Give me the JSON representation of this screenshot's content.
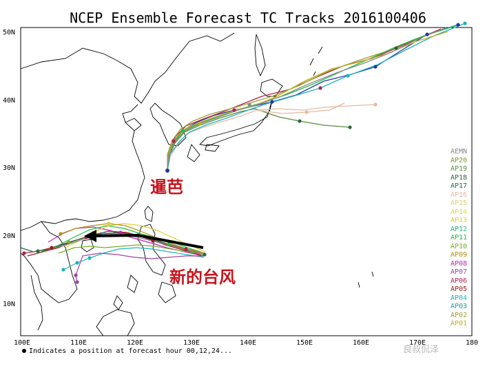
{
  "title": "NCEP Ensemble Forecast TC Tracks 2016100406",
  "lat_labels": [
    "50N",
    "40N",
    "30N",
    "20N",
    "10N"
  ],
  "lon_labels": [
    "100E",
    "110E",
    "120E",
    "130E",
    "140E",
    "150E",
    "160E",
    "170E",
    "180"
  ],
  "legend": [
    {
      "name": "AEMN",
      "color": "#8a8a8a"
    },
    {
      "name": "AP20",
      "color": "#7a9a2a"
    },
    {
      "name": "AP19",
      "color": "#5a8a3a"
    },
    {
      "name": "AP18",
      "color": "#2a6a3a"
    },
    {
      "name": "AP17",
      "color": "#1a6a4a"
    },
    {
      "name": "AP16",
      "color": "#e8b8a0"
    },
    {
      "name": "AP15",
      "color": "#e0d070"
    },
    {
      "name": "AP14",
      "color": "#e0e040"
    },
    {
      "name": "AP13",
      "color": "#e0d030"
    },
    {
      "name": "AP12",
      "color": "#2ab080"
    },
    {
      "name": "AP11",
      "color": "#20c040"
    },
    {
      "name": "AP10",
      "color": "#70b020"
    },
    {
      "name": "AP09",
      "color": "#b09010"
    },
    {
      "name": "AP08",
      "color": "#c020c0"
    },
    {
      "name": "AP07",
      "color": "#a040a0"
    },
    {
      "name": "AP06",
      "color": "#b02050"
    },
    {
      "name": "AP05",
      "color": "#9a1a1a"
    },
    {
      "name": "AP04",
      "color": "#20b0c0"
    },
    {
      "name": "AP03",
      "color": "#20a0a0"
    },
    {
      "name": "AP02",
      "color": "#a0a030"
    },
    {
      "name": "AP01",
      "color": "#c0b020"
    }
  ],
  "footnote": "Indicates a position at forecast hour 00,12,24...",
  "annotations": {
    "north_storm": "暹芭",
    "south_storm": "新的台风"
  },
  "watermark": "良叔侃泽",
  "map_view": {
    "lon_range": [
      100,
      180
    ],
    "lat_range": [
      5,
      51
    ]
  }
}
